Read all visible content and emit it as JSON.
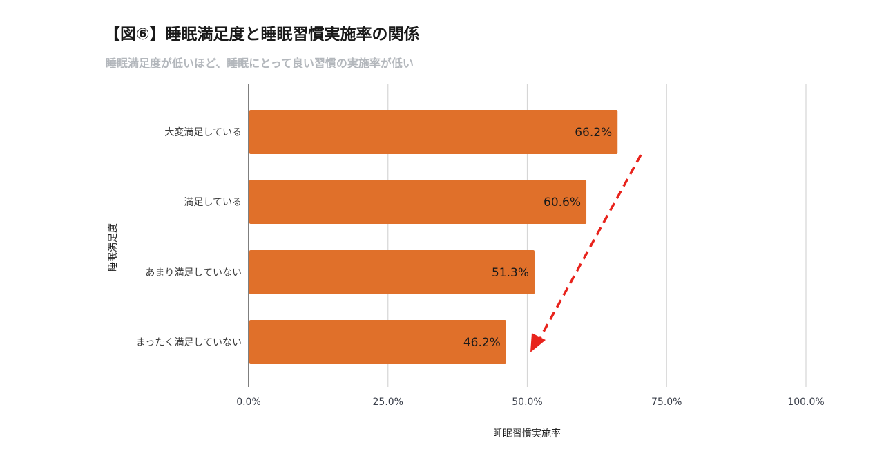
{
  "title": "【図⑥】睡眠満足度と睡眠習慣実施率の関係",
  "subtitle": "睡眠満足度が低いほど、睡眠にとって良い習慣の実施率が低い",
  "colors": {
    "bar": "#e0702a",
    "arrow": "#e8231c",
    "grid": "#d6d6d6",
    "axis": "#555555"
  },
  "chart_data": {
    "type": "bar",
    "orientation": "horizontal",
    "categories": [
      "大変満足している",
      "満足している",
      "あまり満足していない",
      "まったく満足していない"
    ],
    "values": [
      66.2,
      60.6,
      51.3,
      46.2
    ],
    "data_labels": [
      "66.2%",
      "60.6%",
      "51.3%",
      "46.2%"
    ],
    "xlabel": "睡眠習慣実施率",
    "ylabel": "睡眠満足度",
    "xlim": [
      0,
      100
    ],
    "xticks": [
      0,
      25,
      50,
      75,
      100
    ],
    "xtick_labels": [
      "0.0%",
      "25.0%",
      "50.0%",
      "75.0%",
      "100.0%"
    ],
    "grid": "vertical",
    "annotation": "red dashed arrow pointing downward from top-right to bottom-left indicating decreasing trend"
  }
}
